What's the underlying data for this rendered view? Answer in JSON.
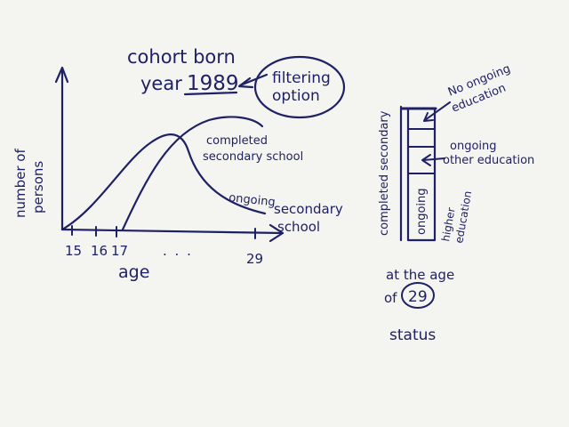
{
  "header": {
    "line1": "cohort born",
    "line2_prefix": "year",
    "year": "1989",
    "filter_label_line1": "filtering",
    "filter_label_line2": "option"
  },
  "graph": {
    "y_axis_label_line1": "number of",
    "y_axis_label_line2": "persons",
    "x_axis_label": "age",
    "ticks": [
      "15",
      "16",
      "17",
      ". . .",
      "29"
    ],
    "curve_completed_line1": "completed",
    "curve_completed_line2": "secondary school",
    "curve_ongoing_line1": "ongoing",
    "curve_ongoing_line2": "secondary",
    "curve_ongoing_line3": "school"
  },
  "status_bar": {
    "vertical_label": "completed secondary",
    "seg_no_ongoing_line1": "No ongoing",
    "seg_no_ongoing_line2": "education",
    "seg_other_line1": "ongoing",
    "seg_other_line2": "other education",
    "seg_ongoing_label": "ongoing",
    "seg_higher_line1": "higher",
    "seg_higher_line2": "education",
    "caption_line1": "at the age",
    "caption_prefix": "of",
    "caption_age": "29",
    "caption_status": "status"
  }
}
